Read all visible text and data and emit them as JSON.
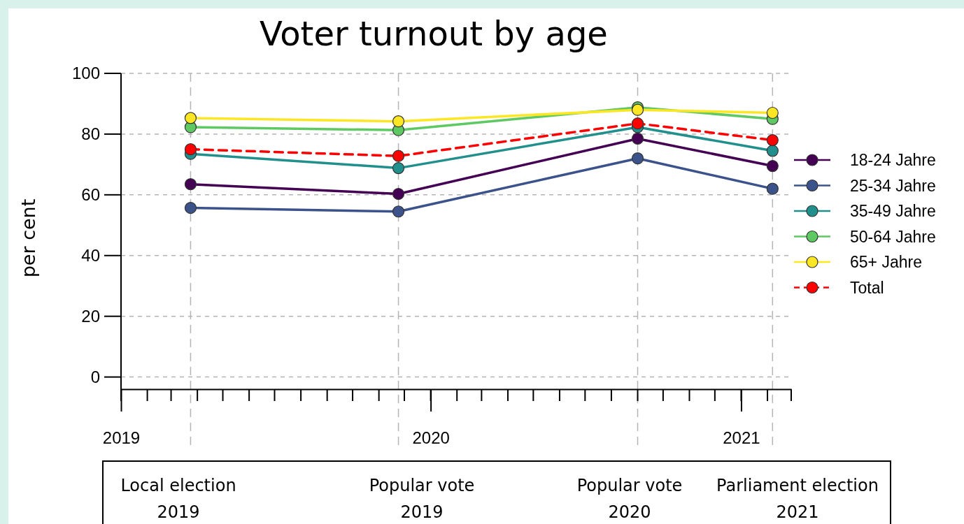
{
  "chart_data": {
    "type": "line",
    "title": "Voter turnout by age",
    "ylabel": "per cent",
    "x": [
      "2019-03-24",
      "2019-11-24",
      "2020-09-01",
      "2021-02-07"
    ],
    "series": [
      {
        "name": "18-24 Jahre",
        "color": "#440154",
        "values": [
          63.5,
          60.3,
          78.5,
          69.5
        ]
      },
      {
        "name": "25-34 Jahre",
        "color": "#3b528b",
        "values": [
          55.7,
          54.5,
          72,
          62
        ]
      },
      {
        "name": "35-49 Jahre",
        "color": "#21908c",
        "values": [
          73.5,
          68.8,
          82.3,
          74.5
        ]
      },
      {
        "name": "50-64 Jahre",
        "color": "#5ec962",
        "values": [
          82.3,
          81.3,
          88.8,
          85
        ]
      },
      {
        "name": "65+ Jahre",
        "color": "#fde725",
        "values": [
          85.3,
          84.2,
          88,
          87
        ]
      },
      {
        "name": "Total",
        "color": "#ff0000",
        "values": [
          75,
          72.8,
          83.5,
          78
        ],
        "line_style": "dashed"
      }
    ],
    "xlim": [
      "2019-01-01",
      "2021-03-01"
    ],
    "xticks": [
      {
        "value": "2019-01-01",
        "label": "2019"
      },
      {
        "value": "2020-01-01",
        "label": "2020"
      },
      {
        "value": "2021-01-01",
        "label": "2021"
      }
    ],
    "ylim": [
      -4,
      100
    ],
    "yticks": [
      0,
      20,
      40,
      60,
      80,
      100
    ],
    "grid": "y",
    "legend": "right",
    "marker": "circle",
    "ref_lines": [
      {
        "axis": "x",
        "value": "2019-03-24",
        "color": "#b4b4b4",
        "line_style": "dashed"
      },
      {
        "axis": "x",
        "value": "2019-11-24",
        "color": "#b4b4b4",
        "line_style": "dashed"
      },
      {
        "axis": "x",
        "value": "2020-09-01",
        "color": "#b4b4b4",
        "line_style": "dashed"
      },
      {
        "axis": "x",
        "value": "2021-02-07",
        "color": "#b4b4b4",
        "line_style": "dashed"
      }
    ],
    "annotations": [
      "Local election\n2019",
      "Popular vote\n2019",
      "Popular vote\n2020",
      "Parliament election\n2021"
    ]
  }
}
